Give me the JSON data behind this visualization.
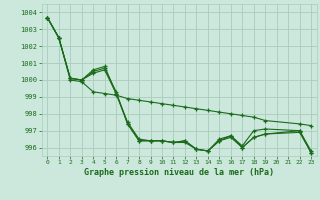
{
  "title": "Graphe pression niveau de la mer (hPa)",
  "background_color": "#cce8dd",
  "grid_color": "#aaccbb",
  "line_color": "#1a6b1a",
  "marker_color": "#1a6b1a",
  "xlim": [
    -0.5,
    23.5
  ],
  "ylim": [
    995.5,
    1004.5
  ],
  "yticks": [
    996,
    997,
    998,
    999,
    1000,
    1001,
    1002,
    1003,
    1004
  ],
  "xticks": [
    0,
    1,
    2,
    3,
    4,
    5,
    6,
    7,
    8,
    9,
    10,
    11,
    12,
    13,
    14,
    15,
    16,
    17,
    18,
    19,
    20,
    21,
    22,
    23
  ],
  "series": [
    [
      1003.7,
      1002.5,
      1000.1,
      1000.0,
      1000.6,
      1000.8,
      999.2,
      997.5,
      996.5,
      996.4,
      996.4,
      996.3,
      996.4,
      995.9,
      995.8,
      996.5,
      996.7,
      996.1,
      997.0,
      997.1,
      null,
      null,
      997.0,
      995.8
    ],
    [
      1003.7,
      1002.5,
      1000.1,
      1000.0,
      1000.5,
      1000.7,
      999.3,
      997.4,
      996.4,
      996.4,
      996.4,
      996.3,
      996.4,
      995.9,
      995.8,
      996.4,
      996.7,
      996.0,
      996.6,
      996.8,
      null,
      null,
      997.0,
      995.7
    ],
    [
      1003.7,
      1002.5,
      1000.1,
      1000.0,
      1000.4,
      1000.6,
      999.2,
      997.4,
      996.4,
      996.4,
      996.4,
      996.3,
      996.3,
      995.9,
      995.8,
      996.4,
      996.6,
      996.0,
      996.6,
      996.8,
      null,
      null,
      996.9,
      995.7
    ],
    [
      1003.7,
      1002.5,
      1000.0,
      999.9,
      999.3,
      999.2,
      999.1,
      998.9,
      998.8,
      998.7,
      998.6,
      998.5,
      998.4,
      998.3,
      998.2,
      998.1,
      998.0,
      997.9,
      997.8,
      997.6,
      null,
      null,
      997.4,
      997.3
    ]
  ]
}
